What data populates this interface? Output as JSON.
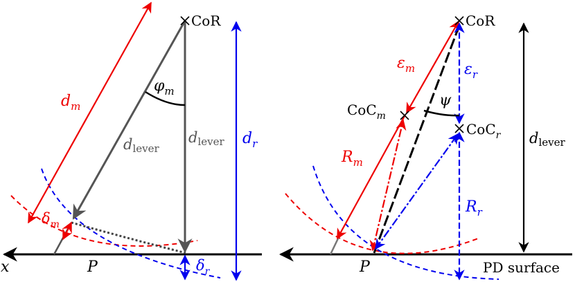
{
  "left": {
    "cor": "CoR",
    "d_m": "d",
    "d_m_sub": "m",
    "phi": "φ",
    "phi_sub": "m",
    "d_lever": "d",
    "d_lever_sub": "lever",
    "d_r": "d",
    "d_r_sub": "r",
    "delta_m": "δ",
    "delta_m_sub": "m",
    "delta_r": "δ",
    "delta_r_sub": "r",
    "P": "P",
    "x": "x"
  },
  "right": {
    "cor": "CoR",
    "eps_m": "ε",
    "eps_m_sub": "m",
    "eps_r": "ε",
    "eps_r_sub": "r",
    "psi": "ψ",
    "coc_m": "CoC",
    "coc_m_sub": "m",
    "coc_r": "CoC",
    "coc_r_sub": "r",
    "d_lever": "d",
    "d_lever_sub": "lever",
    "R_m": "R",
    "R_m_sub": "m",
    "R_r": "R",
    "R_r_sub": "r",
    "P": "P",
    "surface": "PD surface"
  },
  "colors": {
    "red": "#ee0000",
    "blue": "#0000ee",
    "black": "#000000",
    "gray": "#555555",
    "dotted": "#444444"
  }
}
